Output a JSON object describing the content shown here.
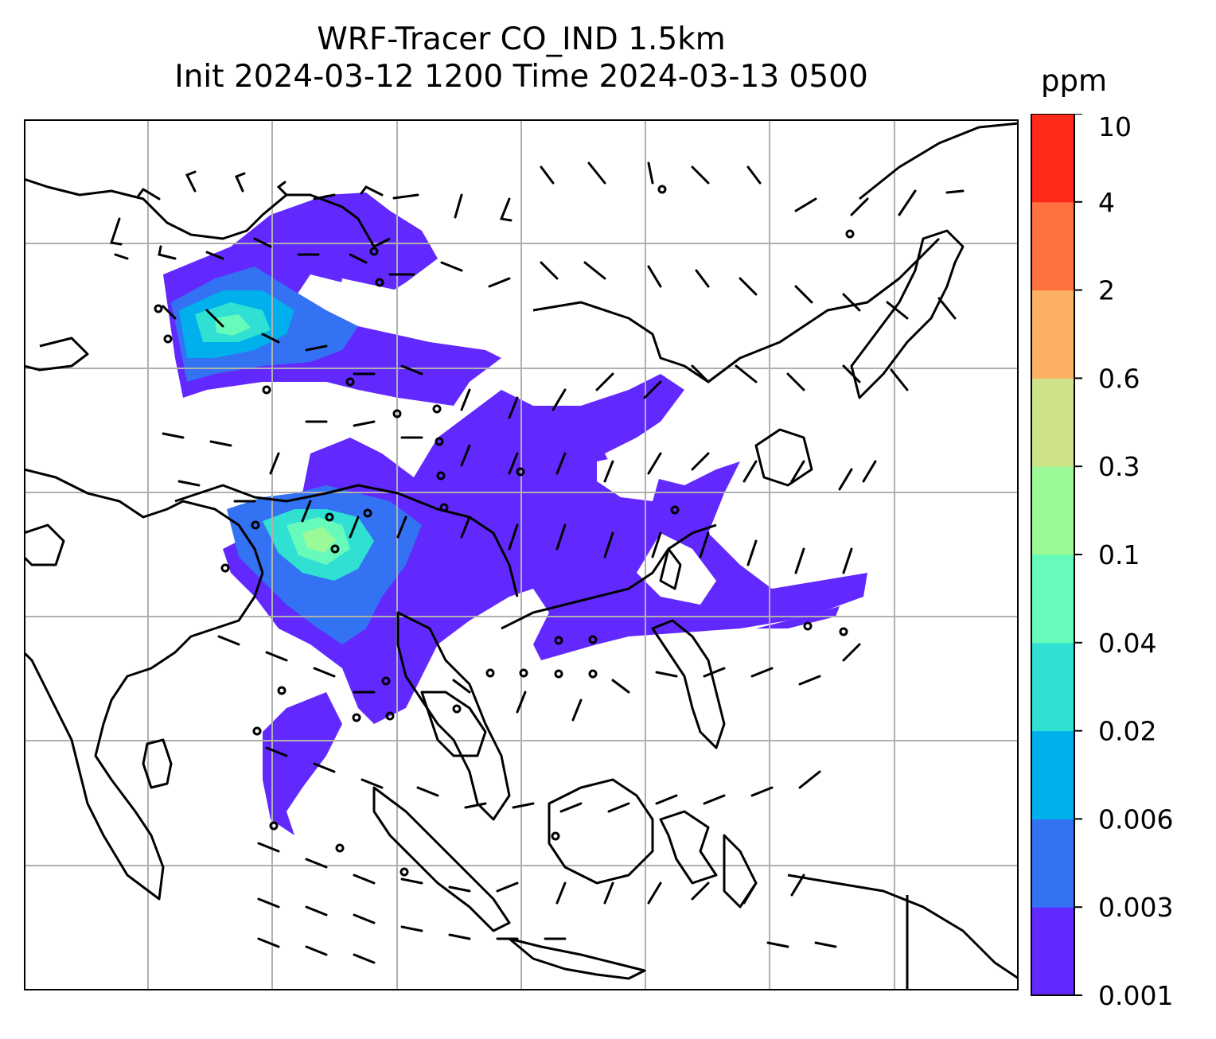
{
  "title": {
    "line1": "WRF-Tracer CO_IND 1.5km",
    "line2": "Init 2024-03-12 1200 Time 2024-03-13 0500"
  },
  "colorbar": {
    "unit": "ppm",
    "levels": [
      "0.001",
      "0.003",
      "0.006",
      "0.02",
      "0.04",
      "0.1",
      "0.3",
      "0.6",
      "2",
      "4",
      "10"
    ],
    "colors": [
      "#6229ff",
      "#3372f3",
      "#00b0ed",
      "#2fe0d3",
      "#66fbbb",
      "#99fa97",
      "#cee387",
      "#fdb064",
      "#ff713e",
      "#ff2a1a"
    ]
  },
  "map": {
    "gridline_color": "#b0b0b0",
    "coastline_color": "#000000",
    "barb_color": "#000000",
    "field": "CO_IND tracer concentration with wind barbs"
  }
}
